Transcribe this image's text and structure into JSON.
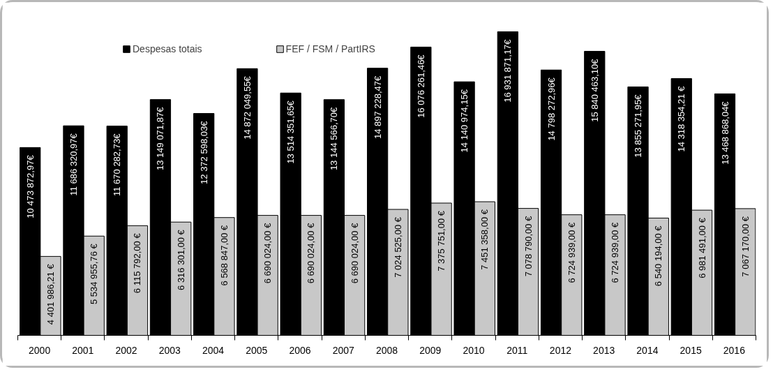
{
  "chart_data": {
    "type": "bar",
    "categories": [
      "2000",
      "2001",
      "2002",
      "2003",
      "2004",
      "2005",
      "2006",
      "2007",
      "2008",
      "2009",
      "2010",
      "2011",
      "2012",
      "2013",
      "2014",
      "2015",
      "2016"
    ],
    "series": [
      {
        "name": "Despesas totais",
        "color": "#000000",
        "values": [
          10473872.97,
          11686320.97,
          11670282.73,
          13149071.87,
          12372598.03,
          14872049.55,
          13514351.65,
          13144566.7,
          14897228.47,
          16076261.46,
          14140974.15,
          16931871.17,
          14798272.96,
          15840463.1,
          13855271.95,
          14318354.21,
          13468868.04
        ],
        "value_labels": [
          "10 473 872,97€",
          "11 686 320,97€",
          "11 670 282,73€",
          "13 149 071,87€",
          "12 372 598,03€",
          "14 872 049,55€",
          "13 514 351,65€",
          "13 144 566,70€",
          "14 897 228,47€",
          "16 076 261,46€",
          "14 140 974,15€",
          "16 931 871,17€",
          "14 798 272,96€",
          "15 840 463,10€",
          "13 855 271,95€",
          "14 318 354,21 €",
          "13 468 868,04€"
        ]
      },
      {
        "name": "FEF / FSM / PartIRS",
        "color": "#c8c8c8",
        "values": [
          4401986.21,
          5534955.76,
          6115792.0,
          6316301.0,
          6568847.0,
          6690024.0,
          6690024.0,
          6690024.0,
          7024525.0,
          7375751.0,
          7451358.0,
          7078790.0,
          6724939.0,
          6724939.0,
          6540194.0,
          6981491.0,
          7067170.0
        ],
        "value_labels": [
          "4 401 986,21 €",
          "5 534 955,76 €",
          "6 115 792,00 €",
          "6 316 301,00 €",
          "6 568 847,00 €",
          "6 690 024,00 €",
          "6 690 024,00 €",
          "6 690 024,00 €",
          "7 024 525,00 €",
          "7 375 751,00 €",
          "7 451 358,00 €",
          "7 078 790,00 €",
          "6 724 939,00 €",
          "6 724 939,00 €",
          "6 540 194,00 €",
          "6 981 491,00 €",
          "7 067 170,00 €"
        ]
      }
    ],
    "legend": "top"
  }
}
